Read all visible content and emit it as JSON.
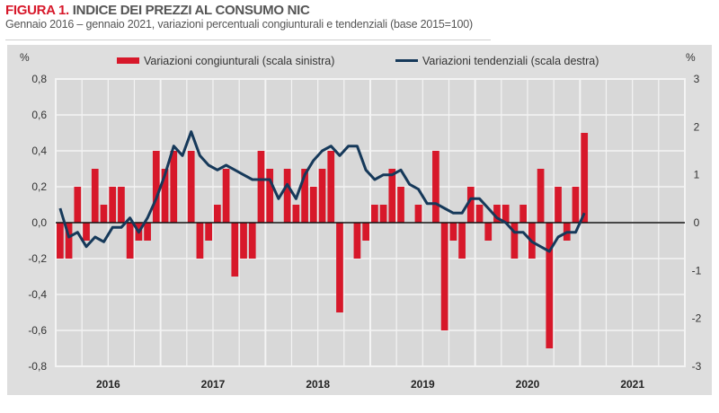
{
  "header": {
    "figure_label": "FIGURA 1.",
    "title": "INDICE DEI PREZZI AL CONSUMO NIC",
    "subtitle": "Gennaio 2016 – gennaio 2021, variazioni  percentuali congiunturali e tendenziali  (base 2015=100)"
  },
  "colors": {
    "bars": "#d7182a",
    "line": "#16395a",
    "panel": "#dedede",
    "plot": "#d8d8d8",
    "grid": "#f4f4f4",
    "zero": "#111111"
  },
  "chart_data": {
    "type": "bar+line",
    "title": "INDICE DEI PREZZI AL CONSUMO NIC",
    "subtitle": "Gennaio 2016 – gennaio 2021, variazioni  percentuali congiunturali e tendenziali  (base 2015=100)",
    "y_left_label": "%",
    "y_right_label": "%",
    "y_left_lim": [
      -0.8,
      0.8
    ],
    "y_right_lim": [
      -3,
      3
    ],
    "y_left_ticks": [
      "0,8",
      "0,6",
      "0,4",
      "0,2",
      "0,0",
      "-0,2",
      "-0,4",
      "-0,6",
      "-0,8"
    ],
    "y_right_ticks": [
      "3",
      "2",
      "1",
      "0",
      "-1",
      "-2",
      "-3"
    ],
    "x_years": [
      "2016",
      "2017",
      "2018",
      "2019",
      "2020",
      "2021"
    ],
    "months_total_axis": 72,
    "grid": true,
    "legend_position": "top",
    "series": [
      {
        "name": "Variazioni congiunturali (scala sinistra)",
        "type": "bar",
        "axis": "left",
        "start": "2016-01",
        "values": [
          -0.2,
          -0.2,
          0.2,
          -0.1,
          0.3,
          0.1,
          0.2,
          0.2,
          -0.2,
          -0.1,
          -0.1,
          0.4,
          0.3,
          0.4,
          0.0,
          0.4,
          -0.2,
          -0.1,
          0.1,
          0.3,
          -0.3,
          -0.2,
          -0.2,
          0.4,
          0.3,
          0.0,
          0.3,
          0.1,
          0.3,
          0.2,
          0.3,
          0.4,
          -0.5,
          0.0,
          -0.2,
          -0.1,
          0.1,
          0.1,
          0.3,
          0.2,
          0.0,
          0.1,
          0.0,
          0.4,
          -0.6,
          -0.1,
          -0.2,
          0.2,
          0.1,
          -0.1,
          0.1,
          0.1,
          -0.2,
          0.1,
          -0.2,
          0.3,
          -0.7,
          0.2,
          -0.1,
          0.2,
          0.5
        ]
      },
      {
        "name": "Variazioni tendenziali (scala destra)",
        "type": "line",
        "axis": "right",
        "start": "2016-01",
        "values": [
          0.3,
          -0.3,
          -0.2,
          -0.5,
          -0.3,
          -0.4,
          -0.1,
          -0.1,
          0.1,
          -0.2,
          0.1,
          0.5,
          1.0,
          1.6,
          1.4,
          1.9,
          1.4,
          1.2,
          1.1,
          1.2,
          1.1,
          1.0,
          0.9,
          0.9,
          0.9,
          0.5,
          0.8,
          0.5,
          1.0,
          1.3,
          1.5,
          1.6,
          1.4,
          1.6,
          1.6,
          1.1,
          0.9,
          1.0,
          1.0,
          1.1,
          0.8,
          0.7,
          0.4,
          0.4,
          0.3,
          0.2,
          0.2,
          0.5,
          0.5,
          0.3,
          0.1,
          0.0,
          -0.2,
          -0.2,
          -0.4,
          -0.5,
          -0.6,
          -0.3,
          -0.2,
          -0.2,
          0.2
        ]
      }
    ]
  }
}
